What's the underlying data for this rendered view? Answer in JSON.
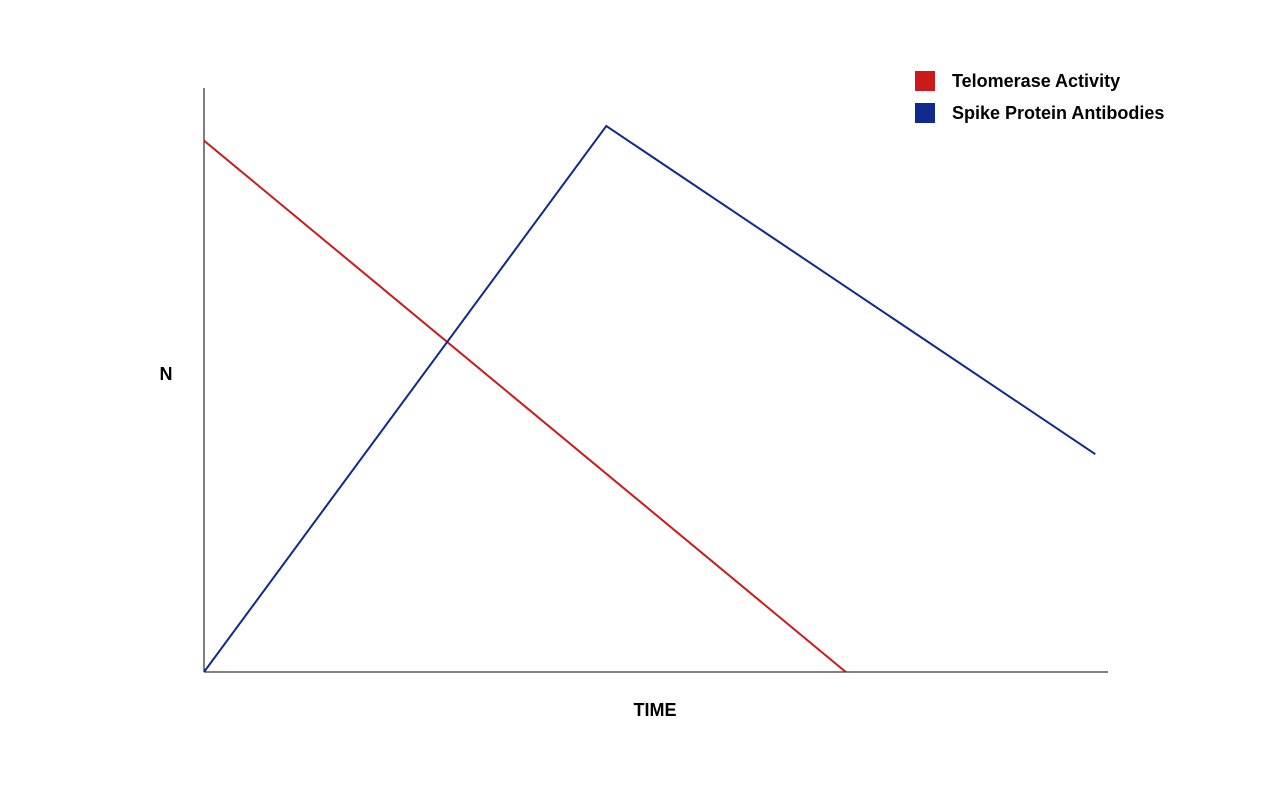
{
  "chart_data": {
    "type": "line",
    "title": "",
    "xlabel": "TIME",
    "ylabel": "N",
    "xlim": [
      0,
      10
    ],
    "ylim": [
      0,
      10
    ],
    "grid": false,
    "legend_position": "top-right",
    "series": [
      {
        "name": "Telomerase Activity",
        "color": "#cc1a1a",
        "x": [
          0,
          7.1
        ],
        "y": [
          9.1,
          0
        ]
      },
      {
        "name": "Spike Protein Antibodies",
        "color": "#0f2a8c",
        "x": [
          0,
          4.45,
          9.86
        ],
        "y": [
          0,
          9.35,
          3.73
        ]
      }
    ]
  }
}
